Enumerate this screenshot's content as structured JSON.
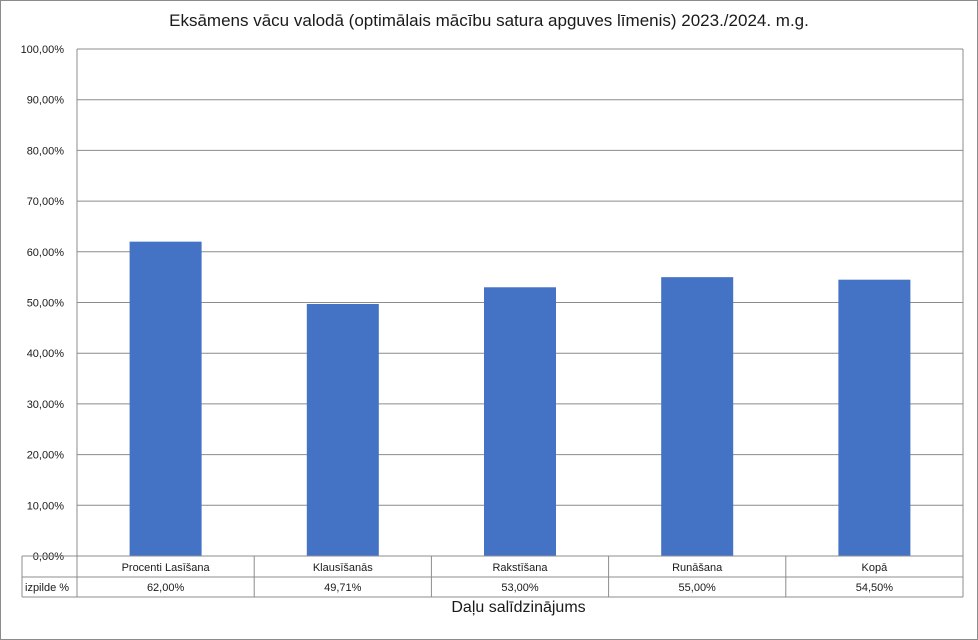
{
  "chart_data": {
    "type": "bar",
    "title": "Eksāmens vācu valodā (optimālais mācību satura apguves līmenis) 2023./2024. m.g.",
    "xlabel": "Daļu salīdzinājums",
    "ylabel": "",
    "categories": [
      "Procenti Lasīšana",
      "Klausīšanās",
      "Rakstīšana",
      "Runāšana",
      "Kopā"
    ],
    "series": [
      {
        "name": "izpilde %",
        "values": [
          62.0,
          49.71,
          53.0,
          55.0,
          54.5
        ],
        "labels": [
          "62,00%",
          "49,71%",
          "53,00%",
          "55,00%",
          "54,50%"
        ],
        "color": "#4472c4"
      }
    ],
    "ylim": [
      0,
      100
    ],
    "y_ticks": [
      "0,00%",
      "10,00%",
      "20,00%",
      "30,00%",
      "40,00%",
      "50,00%",
      "60,00%",
      "70,00%",
      "80,00%",
      "90,00%",
      "100,00%"
    ],
    "grid": true,
    "legend": "data-table",
    "data_table": true
  }
}
